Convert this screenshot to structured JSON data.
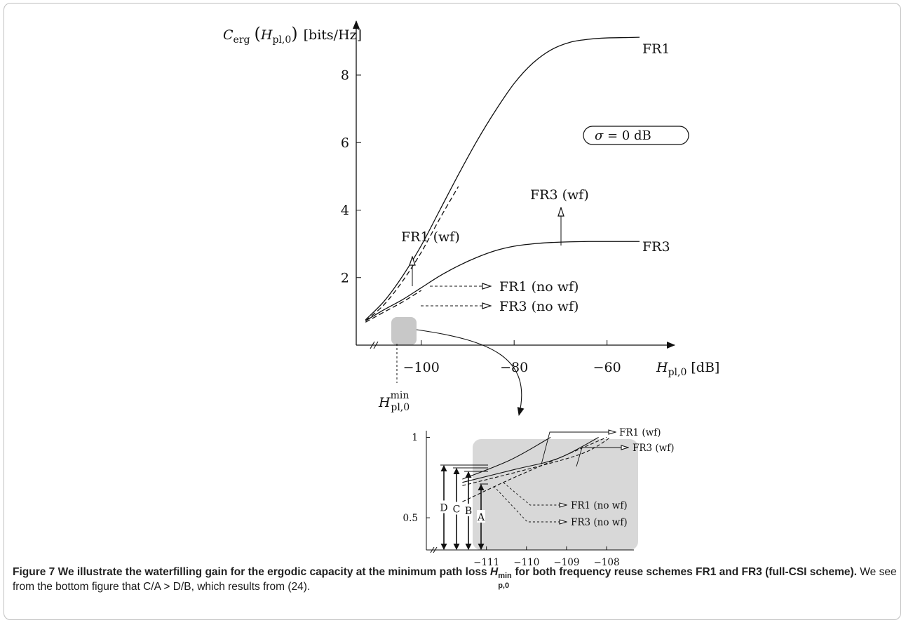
{
  "chart_data": [
    {
      "type": "line",
      "title": "",
      "ylabel": "C_erg(H_pl,0) [bits/Hz]",
      "xlabel": "H_pl,0 [dB]",
      "xlim": [
        -114,
        -45
      ],
      "ylim": [
        0,
        9.6
      ],
      "x_ticks": [
        -100,
        -80,
        -60
      ],
      "x_tick_labels": [
        "−100",
        "−80",
        "−60"
      ],
      "y_ticks": [
        2,
        4,
        6,
        8
      ],
      "y_tick_labels": [
        "2",
        "4",
        "6",
        "8"
      ],
      "axis_break": "x-axis near origin",
      "annotation_box": "σ = 0 dB",
      "min_marker_label": "H_pl,0^min",
      "series": [
        {
          "name": "FR1",
          "style": "solid",
          "x": [
            -112,
            -108,
            -104,
            -100,
            -96,
            -92,
            -88,
            -84,
            -80,
            -76,
            -72,
            -68,
            -64,
            -60,
            -56,
            -53
          ],
          "y": [
            0.75,
            1.3,
            2.05,
            2.95,
            4.0,
            5.05,
            6.05,
            6.95,
            7.75,
            8.35,
            8.75,
            8.97,
            9.06,
            9.1,
            9.11,
            9.12
          ]
        },
        {
          "name": "FR3",
          "style": "solid",
          "x": [
            -112,
            -108,
            -104,
            -100,
            -96,
            -92,
            -88,
            -84,
            -80,
            -76,
            -72,
            -68,
            -64,
            -60,
            -56,
            -53
          ],
          "y": [
            0.72,
            1.05,
            1.35,
            1.7,
            2.05,
            2.35,
            2.6,
            2.8,
            2.93,
            3.0,
            3.04,
            3.06,
            3.07,
            3.07,
            3.07,
            3.07
          ]
        },
        {
          "name": "FR1 (no wf)",
          "style": "dashed",
          "x": [
            -112,
            -108,
            -104,
            -100,
            -96,
            -92
          ],
          "y": [
            0.72,
            1.2,
            1.9,
            2.75,
            3.75,
            4.7
          ]
        },
        {
          "name": "FR3 (no wf)",
          "style": "dashed",
          "x": [
            -112,
            -108,
            -104,
            -100
          ],
          "y": [
            0.68,
            0.98,
            1.28,
            1.62
          ]
        }
      ],
      "labels": [
        "FR1",
        "FR3",
        "FR1 (wf)",
        "FR3 (wf)",
        "FR1 (no wf)",
        "FR3 (no wf)"
      ]
    },
    {
      "type": "line",
      "title": "",
      "xlim": [
        -112.5,
        -107.3
      ],
      "ylim": [
        0.3,
        1.05
      ],
      "x_ticks": [
        -111,
        -110,
        -109,
        -108
      ],
      "x_tick_labels": [
        "−111",
        "−110",
        "−109",
        "−108"
      ],
      "y_ticks": [
        0.5,
        1
      ],
      "y_tick_labels": [
        "0.5",
        "1"
      ],
      "axis_break": "x-axis near origin",
      "gap_markers": [
        "D",
        "C",
        "B",
        "A"
      ],
      "series": [
        {
          "name": "FR1 (wf)",
          "style": "solid",
          "x": [
            -111.6,
            -110.4,
            -109.4
          ],
          "y": [
            0.74,
            0.86,
            1.0
          ]
        },
        {
          "name": "FR3 (wf)",
          "style": "solid",
          "x": [
            -111.6,
            -110.3,
            -109.2,
            -108.2
          ],
          "y": [
            0.72,
            0.8,
            0.87,
            1.0
          ]
        },
        {
          "name": "FR1 (no wf)",
          "style": "dashed",
          "x": [
            -111.6,
            -110.0,
            -108.6,
            -107.9
          ],
          "y": [
            0.7,
            0.8,
            0.9,
            1.0
          ]
        },
        {
          "name": "FR3 (no wf)",
          "style": "dashed",
          "x": [
            -111.6,
            -110.4,
            -109.2,
            -108.0
          ],
          "y": [
            0.6,
            0.74,
            0.87,
            1.0
          ]
        }
      ],
      "labels": [
        "FR1 (wf)",
        "FR3 (wf)",
        "FR1 (no wf)",
        "FR3 (no wf)"
      ]
    }
  ],
  "caption": {
    "lead_pre": "Figure 7 We illustrate the waterfilling gain for the ergodic capacity at the minimum path loss ",
    "lead_var": "H",
    "lead_sub": "p,0",
    "lead_sup": "min",
    "lead_post": " for both frequency reuse schemes FR1 and FR3 (full-CSI scheme).",
    "body": " We see from the bottom figure that C/A > D/B, which results from (24)."
  }
}
